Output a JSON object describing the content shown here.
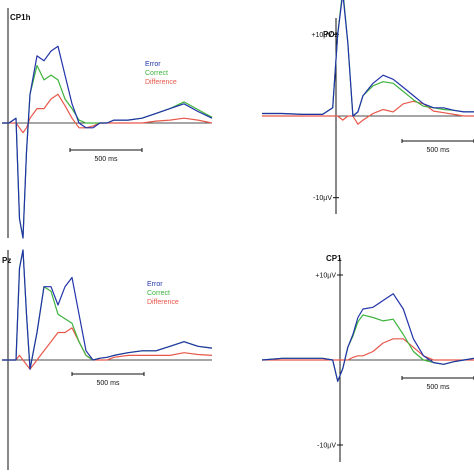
{
  "colors": {
    "error": "#2233aa",
    "correct": "#3db33d",
    "difference": "#e8584a",
    "axis": "#111111"
  },
  "legend": {
    "error": "Error",
    "correct": "Correct",
    "difference": "Difference"
  },
  "chart_data": [
    {
      "type": "line",
      "title": "CP1h",
      "scalebar_label": "500 ms",
      "legend_placement": "top-right",
      "legend_shown": true,
      "amplitude_labels": {
        "pos": "",
        "neg": ""
      },
      "xlim": [
        -100,
        1400
      ],
      "ylim": [
        -12,
        12
      ],
      "x": [
        -100,
        -50,
        0,
        25,
        50,
        75,
        100,
        150,
        200,
        250,
        300,
        350,
        400,
        450,
        500,
        550,
        600,
        650,
        700,
        800,
        900,
        1000,
        1100,
        1200,
        1300,
        1400
      ],
      "series": [
        {
          "name": "Error",
          "values": [
            0,
            0,
            0.5,
            -10,
            -12,
            -3,
            3,
            7,
            6.5,
            7.5,
            8,
            5,
            2,
            0,
            -0.5,
            -0.5,
            0,
            0,
            0.3,
            0.3,
            0.5,
            1,
            1.5,
            2,
            1.2,
            0.5
          ]
        },
        {
          "name": "Correct",
          "values": [
            0,
            0,
            0.5,
            -10,
            -12,
            -3,
            3,
            6,
            4.5,
            5,
            4.5,
            2.5,
            1.5,
            0.3,
            0,
            0,
            0,
            0,
            0.3,
            0.3,
            0.5,
            1,
            1.5,
            2.2,
            1.4,
            0.6
          ]
        },
        {
          "name": "Difference",
          "values": [
            0,
            0,
            0,
            -0.5,
            -1,
            -0.5,
            0.5,
            1.5,
            1.5,
            2.5,
            3,
            1.8,
            0.5,
            -0.5,
            -0.5,
            -0.3,
            0,
            0,
            0,
            0,
            0,
            0.2,
            0.3,
            0.5,
            0.3,
            0
          ]
        }
      ]
    },
    {
      "type": "line",
      "title": "POz",
      "scalebar_label": "500 ms",
      "legend_shown": false,
      "amplitude_labels": {
        "pos": "+10µV",
        "neg": "-10µV"
      },
      "xlim": [
        -350,
        700
      ],
      "ylim": [
        -12,
        12
      ],
      "x": [
        -350,
        -250,
        -150,
        -50,
        0,
        25,
        50,
        75,
        100,
        125,
        150,
        200,
        250,
        300,
        350,
        400,
        450,
        500,
        550,
        600,
        650,
        700
      ],
      "series": [
        {
          "name": "Error",
          "values": [
            0.3,
            0.3,
            0.2,
            0.2,
            1,
            10,
            15,
            9,
            0,
            0.5,
            2.5,
            4,
            5,
            4.5,
            3.5,
            2.5,
            1.5,
            1,
            1,
            0.7,
            0.5,
            0.5
          ]
        },
        {
          "name": "Correct",
          "values": [
            0.3,
            0.3,
            0.2,
            0.2,
            1,
            10,
            15.5,
            9,
            0,
            0.5,
            2.5,
            3.7,
            4.2,
            4,
            3,
            2,
            1.2,
            1,
            0.8,
            0.7,
            0.5,
            0.5
          ]
        },
        {
          "name": "Difference",
          "values": [
            0,
            0,
            0,
            0,
            0,
            0,
            -0.5,
            0,
            0,
            -1,
            -0.5,
            0.3,
            0.8,
            0.5,
            1.5,
            1.8,
            1.5,
            0.6,
            0.4,
            0.2,
            0,
            0
          ]
        }
      ]
    },
    {
      "type": "line",
      "title": "Pz",
      "scalebar_label": "500 ms",
      "legend_placement": "top-right",
      "legend_shown": true,
      "amplitude_labels": {
        "pos": "",
        "neg": ""
      },
      "xlim": [
        -100,
        1400
      ],
      "ylim": [
        -12,
        12
      ],
      "x": [
        -100,
        -50,
        0,
        25,
        50,
        75,
        100,
        150,
        200,
        250,
        300,
        350,
        400,
        450,
        500,
        550,
        600,
        650,
        700,
        800,
        900,
        1000,
        1100,
        1200,
        1300,
        1400
      ],
      "series": [
        {
          "name": "Error",
          "values": [
            0,
            0,
            0,
            10,
            12,
            5,
            -1,
            3,
            8,
            8,
            6,
            8,
            9,
            5,
            1,
            0,
            0.2,
            0.3,
            0.5,
            0.8,
            1,
            1,
            1.5,
            2,
            1.5,
            1.3
          ]
        },
        {
          "name": "Correct",
          "values": [
            0,
            0,
            0,
            10,
            12,
            5,
            -1,
            3,
            8,
            7.5,
            5,
            4.5,
            4,
            2,
            0.5,
            0,
            0.2,
            0.3,
            0.5,
            0.8,
            1,
            1,
            1.5,
            2,
            1.5,
            1.3
          ]
        },
        {
          "name": "Difference",
          "values": [
            0,
            0,
            0,
            0.5,
            0,
            -0.5,
            -1,
            0,
            1,
            2,
            3,
            3,
            3.5,
            2,
            0.5,
            0,
            0,
            0,
            0.3,
            0.5,
            0.5,
            0.5,
            0.5,
            0.8,
            0.6,
            0.5
          ]
        }
      ]
    },
    {
      "type": "line",
      "title": "CP1",
      "scalebar_label": "500 ms",
      "legend_shown": false,
      "amplitude_labels": {
        "pos": "+10µV",
        "neg": "-10µV"
      },
      "xlim": [
        -350,
        700
      ],
      "ylim": [
        -12,
        12
      ],
      "x": [
        -350,
        -250,
        -150,
        -50,
        0,
        25,
        50,
        75,
        100,
        125,
        150,
        200,
        250,
        300,
        350,
        400,
        450,
        500,
        550,
        600,
        650,
        700
      ],
      "series": [
        {
          "name": "Error",
          "values": [
            0,
            0.2,
            0.2,
            0.2,
            0,
            -2.5,
            -1,
            1.5,
            3,
            5,
            6,
            6.2,
            7,
            7.8,
            6,
            2.5,
            0.5,
            -0.3,
            -0.5,
            -0.2,
            0,
            0.2
          ]
        },
        {
          "name": "Correct",
          "values": [
            0,
            0.2,
            0.2,
            0.2,
            0,
            -2.5,
            -1,
            1.5,
            2.8,
            4.5,
            5.3,
            5,
            4.6,
            4.8,
            3,
            1,
            0,
            -0.3,
            -0.5,
            -0.2,
            0,
            0.2
          ]
        },
        {
          "name": "Difference",
          "values": [
            0,
            0,
            0,
            0,
            0,
            0,
            0,
            0,
            0.3,
            0.5,
            0.5,
            1,
            2,
            2.5,
            2.5,
            1.5,
            0.5,
            0,
            0,
            0,
            0,
            0
          ]
        }
      ]
    }
  ]
}
